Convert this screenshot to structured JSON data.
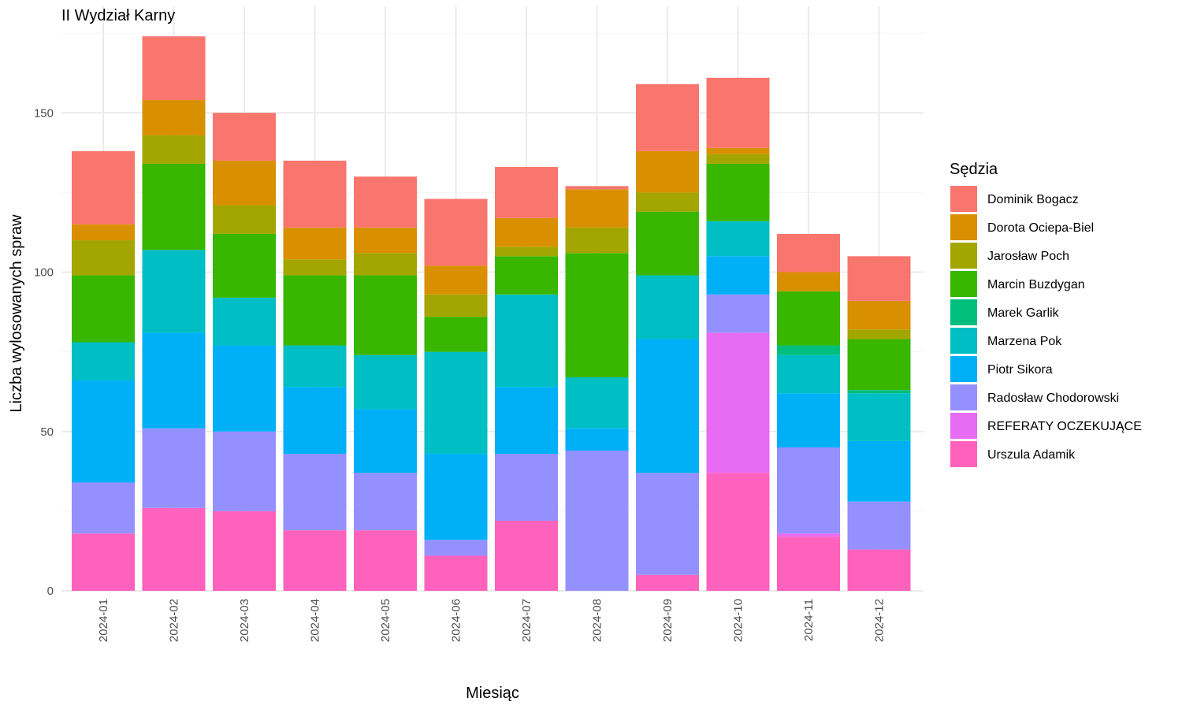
{
  "chart_data": {
    "type": "bar",
    "stacked": true,
    "title": "II Wydział Karny",
    "xlabel": "Miesiąc",
    "ylabel": "Liczba wylosowanych spraw",
    "ylim": [
      0,
      175
    ],
    "yticks": [
      0,
      50,
      100,
      150
    ],
    "grid": true,
    "legend_title": "Sędzia",
    "legend_position": "right",
    "categories": [
      "2024-01",
      "2024-02",
      "2024-03",
      "2024-04",
      "2024-05",
      "2024-06",
      "2024-07",
      "2024-08",
      "2024-09",
      "2024-10",
      "2024-11",
      "2024-12"
    ],
    "series": [
      {
        "name": "Dominik Bogacz",
        "color": "#F8766D",
        "values": [
          23,
          20,
          15,
          21,
          16,
          21,
          16,
          1,
          21,
          22,
          12,
          14
        ]
      },
      {
        "name": "Dorota Ociepa-Biel",
        "color": "#D89000",
        "values": [
          5,
          11,
          14,
          10,
          8,
          9,
          9,
          12,
          13,
          2,
          6,
          9
        ]
      },
      {
        "name": "Jarosław Poch",
        "color": "#A3A500",
        "values": [
          11,
          9,
          9,
          5,
          7,
          7,
          3,
          8,
          6,
          3,
          0,
          3
        ]
      },
      {
        "name": "Marcin Buzdygan",
        "color": "#39B600",
        "values": [
          21,
          27,
          20,
          22,
          25,
          11,
          12,
          39,
          20,
          18,
          17,
          16
        ]
      },
      {
        "name": "Marek Garlik",
        "color": "#00BF7D",
        "values": [
          0,
          0,
          0,
          0,
          0,
          0,
          0,
          0,
          0,
          0,
          3,
          1
        ]
      },
      {
        "name": "Marzena Pok",
        "color": "#00BFC4",
        "values": [
          12,
          26,
          15,
          13,
          17,
          32,
          29,
          16,
          20,
          11,
          12,
          15
        ]
      },
      {
        "name": "Piotr Sikora",
        "color": "#00B0F6",
        "values": [
          32,
          30,
          27,
          21,
          20,
          27,
          21,
          7,
          42,
          12,
          17,
          19
        ]
      },
      {
        "name": "Radosław Chodorowski",
        "color": "#9590FF",
        "values": [
          16,
          25,
          25,
          24,
          18,
          5,
          21,
          44,
          32,
          12,
          27,
          15
        ]
      },
      {
        "name": "REFERATY OCZEKUJĄCE",
        "color": "#E76BF3",
        "values": [
          0,
          0,
          0,
          0,
          0,
          0,
          0,
          0,
          0,
          44,
          1,
          0
        ]
      },
      {
        "name": "Urszula Adamik",
        "color": "#FF62BC",
        "values": [
          18,
          26,
          25,
          19,
          19,
          11,
          22,
          0,
          5,
          37,
          17,
          13
        ]
      }
    ]
  }
}
